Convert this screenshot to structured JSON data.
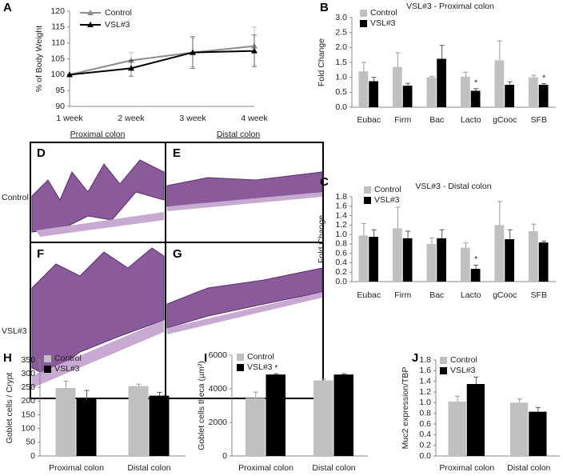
{
  "chart_data": [
    {
      "type": "line",
      "panel": "A",
      "ylabel": "% of Body Weight",
      "categories": [
        "1 week",
        "2 week",
        "3 week",
        "4 week"
      ],
      "series": [
        {
          "name": "Control",
          "color": "#8c8c8c",
          "values": [
            100,
            104.5,
            107,
            109
          ],
          "errors": [
            0,
            2.5,
            4.5,
            6
          ]
        },
        {
          "name": "VSL#3",
          "color": "#000000",
          "values": [
            100,
            102,
            107,
            107.5
          ],
          "errors": [
            0,
            2.5,
            5,
            5
          ]
        }
      ],
      "ylim": [
        90,
        120
      ],
      "yticks": [
        90,
        95,
        100,
        105,
        110,
        115,
        120
      ],
      "legend": "upper left"
    },
    {
      "type": "bar",
      "panel": "B",
      "title": "VSL#3 - Proximal colon",
      "ylabel": "Fold Change",
      "categories": [
        "Eubac",
        "Firm",
        "Bac",
        "Lacto",
        "gCooc",
        "SFB"
      ],
      "series": [
        {
          "name": "Control",
          "color": "#c0c0c0",
          "values": [
            1.2,
            1.35,
            1.0,
            1.02,
            1.57,
            1.0
          ],
          "errors": [
            0.3,
            0.47,
            0.03,
            0.15,
            0.65,
            0.07
          ]
        },
        {
          "name": "VSL#3",
          "color": "#000000",
          "values": [
            0.87,
            0.72,
            1.62,
            0.55,
            0.75,
            0.75
          ],
          "errors": [
            0.13,
            0.08,
            0.45,
            0.07,
            0.1,
            0.04
          ],
          "markers": [
            null,
            null,
            null,
            "*",
            null,
            "*"
          ]
        }
      ],
      "ylim": [
        0,
        3
      ],
      "yticks": [
        {
          "value": 0,
          "label": "0.0"
        },
        0.5,
        {
          "value": 1,
          "label": "1.0"
        },
        1.5,
        {
          "value": 2,
          "label": "2.0"
        },
        2.5,
        {
          "value": 3,
          "label": "3.0"
        }
      ],
      "legend": "upper left"
    },
    {
      "type": "bar",
      "panel": "C",
      "title": "VSL#3 - Distal colon",
      "ylabel": "Fold Change",
      "categories": [
        "Eubac",
        "Firm",
        "Bac",
        "Lacto",
        "gCooc",
        "SFB"
      ],
      "series": [
        {
          "name": "Control",
          "color": "#c0c0c0",
          "values": [
            0.98,
            1.13,
            0.8,
            0.72,
            1.2,
            1.07
          ],
          "errors": [
            0.25,
            0.45,
            0.13,
            0.1,
            0.5,
            0.15
          ]
        },
        {
          "name": "VSL#3",
          "color": "#000000",
          "values": [
            0.95,
            0.92,
            0.92,
            0.27,
            0.9,
            0.83
          ],
          "errors": [
            0.15,
            0.15,
            0.18,
            0.08,
            0.2,
            0.03
          ],
          "markers": [
            null,
            null,
            null,
            "*",
            null,
            null
          ]
        }
      ],
      "ylim": [
        0,
        1.8
      ],
      "yticks": [
        {
          "value": 0,
          "label": "0.0"
        },
        0.2,
        0.4,
        0.6,
        0.8,
        {
          "value": 1,
          "label": "1.0"
        },
        1.2,
        1.4,
        1.6,
        1.8
      ],
      "legend": "upper left"
    },
    {
      "type": "bar",
      "panel": "H",
      "ylabel": "Goblet cells / Crypt",
      "categories": [
        "Proximal colon",
        "Distal colon"
      ],
      "series": [
        {
          "name": "Control",
          "color": "#c0c0c0",
          "values": [
            248,
            255
          ],
          "errors": [
            25,
            7
          ]
        },
        {
          "name": "VSL#3",
          "color": "#000000",
          "values": [
            207,
            220
          ],
          "errors": [
            32,
            12
          ]
        }
      ],
      "ylim": [
        0,
        350
      ],
      "yticks": [
        0,
        50,
        100,
        150,
        200,
        250,
        300,
        350
      ],
      "legend": "upper left"
    },
    {
      "type": "bar",
      "panel": "I",
      "ylabel": "Goblet cells theca (µm²)",
      "categories": [
        "Proximal colon",
        "Distal colon"
      ],
      "series": [
        {
          "name": "Control",
          "color": "#c0c0c0",
          "values": [
            3450,
            4500
          ],
          "errors": [
            350,
            80
          ]
        },
        {
          "name": "VSL#3",
          "color": "#000000",
          "values": [
            4850,
            4850
          ],
          "errors": [
            50,
            50
          ],
          "markers": [
            "*",
            null
          ]
        }
      ],
      "ylim": [
        0,
        6000
      ],
      "yticks": [
        0,
        2000,
        4000,
        6000
      ],
      "legend": "upper left"
    },
    {
      "type": "bar",
      "panel": "J",
      "ylabel": "Muc2 expression/TBP",
      "categories": [
        "Proximal colon",
        "Distal colon"
      ],
      "series": [
        {
          "name": "Control",
          "color": "#c0c0c0",
          "values": [
            1.02,
            1.0
          ],
          "errors": [
            0.1,
            0.07
          ]
        },
        {
          "name": "VSL#3",
          "color": "#000000",
          "values": [
            1.35,
            0.83
          ],
          "errors": [
            0.13,
            0.08
          ]
        }
      ],
      "ylim": [
        0,
        1.8
      ],
      "yticks": [
        {
          "value": 0,
          "label": "0.0"
        },
        0.2,
        0.4,
        0.6,
        0.8,
        {
          "value": 1,
          "label": "1.0"
        },
        1.2,
        1.4,
        1.6,
        1.8
      ],
      "legend": "upper left"
    }
  ],
  "histology": {
    "columns": [
      "Proximal colon",
      "Distal colon"
    ],
    "rows": [
      "Control",
      "VSL#3"
    ],
    "panels": [
      "D",
      "E",
      "F",
      "G"
    ]
  }
}
